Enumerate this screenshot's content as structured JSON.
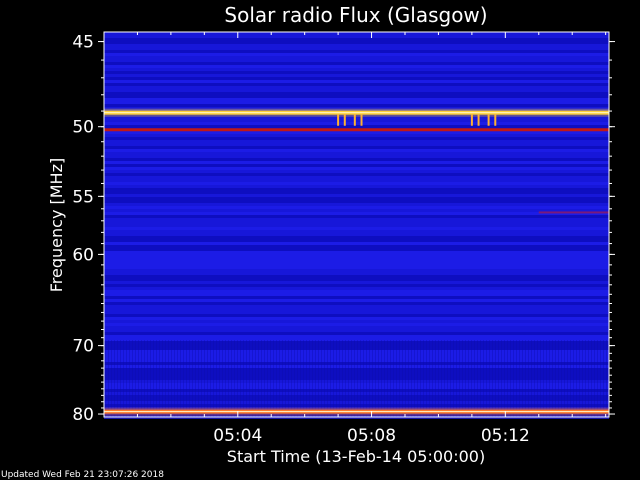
{
  "chart_data": {
    "type": "heatmap",
    "title": "Solar radio Flux (Glasgow)",
    "xlabel": "Start Time (13-Feb-14 05:00:00)",
    "ylabel": "Frequency [MHz]",
    "x_range_minutes": [
      0,
      15.1
    ],
    "x_ticks": [
      {
        "minute": 4,
        "label": "05:04"
      },
      {
        "minute": 8,
        "label": "05:08"
      },
      {
        "minute": 12,
        "label": "05:12"
      }
    ],
    "y_scale": "reciprocal",
    "y_range_mhz": [
      44.5,
      80.5
    ],
    "y_ticks": [
      {
        "mhz": 45,
        "label": "45"
      },
      {
        "mhz": 50,
        "label": "50"
      },
      {
        "mhz": 55,
        "label": "55"
      },
      {
        "mhz": 60,
        "label": "60"
      },
      {
        "mhz": 70,
        "label": "70"
      },
      {
        "mhz": 80,
        "label": "80"
      }
    ],
    "background_color": "#1010d8",
    "emission_lines": [
      {
        "name": "strong interference band",
        "mhz": 49.1,
        "color": "#ffd23a",
        "intensity": "high"
      },
      {
        "name": "interference band",
        "mhz": 50.2,
        "color": "#c01818",
        "intensity": "medium"
      },
      {
        "name": "interference band",
        "mhz": 56.3,
        "color": "#7a1a7a",
        "intensity": "low",
        "start_minute": 13.0
      },
      {
        "name": "bottom band",
        "mhz": 79.6,
        "color": "#ff7a2a",
        "intensity": "high"
      }
    ],
    "spikes_minutes": [
      7.0,
      7.2,
      7.5,
      7.7,
      11.0,
      11.2,
      11.5,
      11.7
    ],
    "grid": false,
    "legend": "none"
  },
  "footer": {
    "updated": "Updated Wed Feb 21 23:07:26 2018"
  }
}
